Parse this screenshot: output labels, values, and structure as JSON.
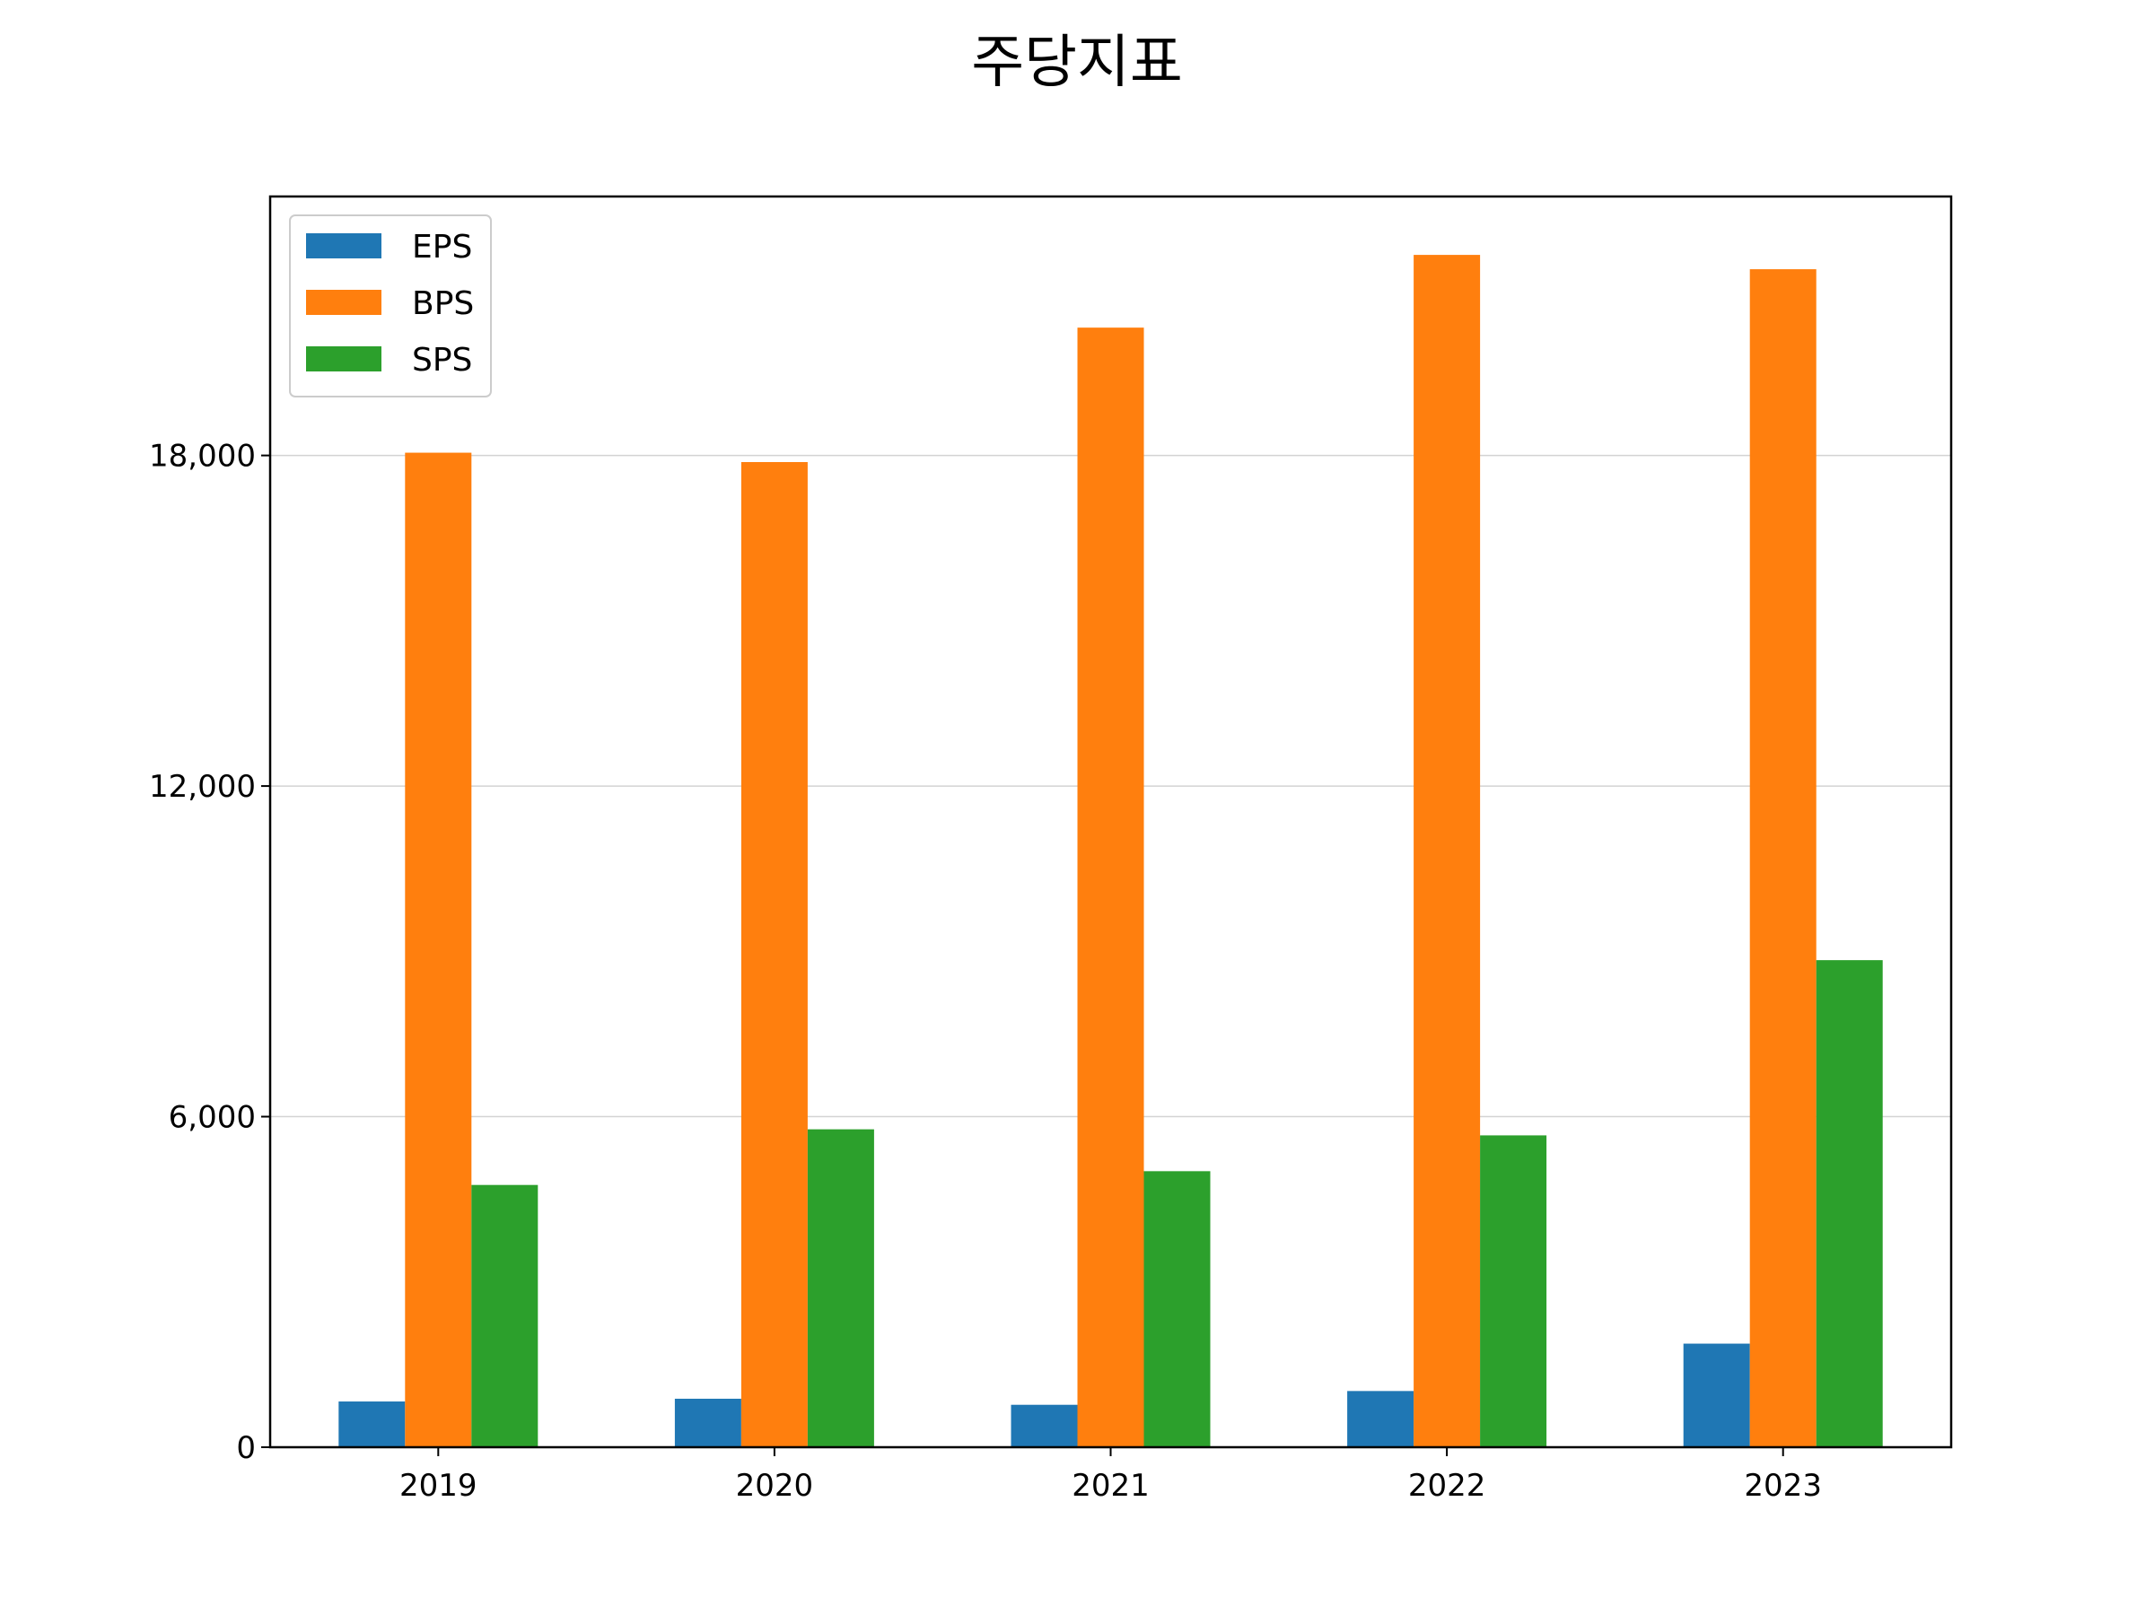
{
  "chart_data": {
    "type": "bar",
    "title": "주당지표",
    "xlabel": "",
    "ylabel": "",
    "categories": [
      "2019",
      "2020",
      "2021",
      "2022",
      "2023"
    ],
    "series": [
      {
        "name": "EPS",
        "color": "#1f77b4",
        "values": [
          830,
          880,
          770,
          1020,
          1880
        ]
      },
      {
        "name": "BPS",
        "color": "#ff7f0e",
        "values": [
          18050,
          17880,
          20320,
          21640,
          21380
        ]
      },
      {
        "name": "SPS",
        "color": "#2ca02c",
        "values": [
          4760,
          5770,
          5010,
          5660,
          8840
        ]
      }
    ],
    "ylim": [
      0,
      22700
    ],
    "yticks": [
      0,
      6000,
      12000,
      18000
    ],
    "ytick_labels": [
      "0",
      "6,000",
      "12,000",
      "18,000"
    ],
    "grid": "horizontal",
    "legend_position": "top-left"
  }
}
